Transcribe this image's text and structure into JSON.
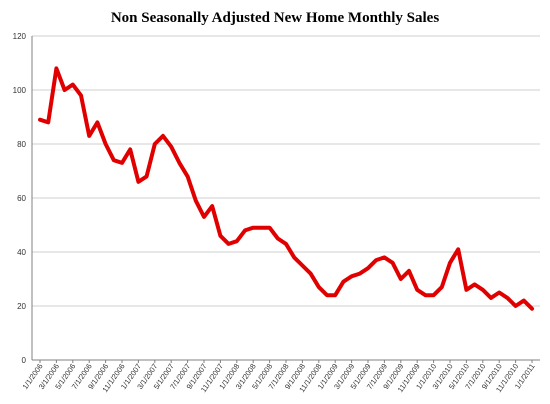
{
  "chart_data": {
    "type": "line",
    "title": "Non Seasonally Adjusted New Home Monthly Sales",
    "xlabel": "",
    "ylabel": "",
    "ylim": [
      0,
      120
    ],
    "y_ticks": [
      0,
      20,
      40,
      60,
      80,
      100,
      120
    ],
    "grid": true,
    "legend": "none",
    "line_color": "#e00000",
    "x_tick_labels": [
      "1/1/2006",
      "3/1/2006",
      "5/1/2006",
      "7/1/2006",
      "9/1/2006",
      "11/1/2006",
      "1/1/2007",
      "3/1/2007",
      "5/1/2007",
      "7/1/2007",
      "9/1/2007",
      "11/1/2007",
      "1/1/2008",
      "3/1/2008",
      "5/1/2008",
      "7/1/2008",
      "9/1/2008",
      "11/1/2008",
      "1/1/2009",
      "3/1/2009",
      "5/1/2009",
      "7/1/2009",
      "9/1/2009",
      "11/1/2009",
      "1/1/2010",
      "3/1/2010",
      "5/1/2010",
      "7/1/2010",
      "9/1/2010",
      "11/1/2010",
      "1/1/2011"
    ],
    "series": [
      {
        "values": [
          89,
          88,
          108,
          100,
          102,
          98,
          83,
          88,
          80,
          74,
          73,
          78,
          66,
          68,
          80,
          83,
          79,
          73,
          68,
          59,
          53,
          57,
          46,
          43,
          44,
          48,
          49,
          49,
          49,
          45,
          43,
          38,
          35,
          32,
          27,
          24,
          24,
          29,
          31,
          32,
          34,
          37,
          38,
          36,
          30,
          33,
          26,
          24,
          24,
          27,
          36,
          41,
          26,
          28,
          26,
          23,
          25,
          23,
          20,
          22,
          19
        ]
      }
    ]
  }
}
